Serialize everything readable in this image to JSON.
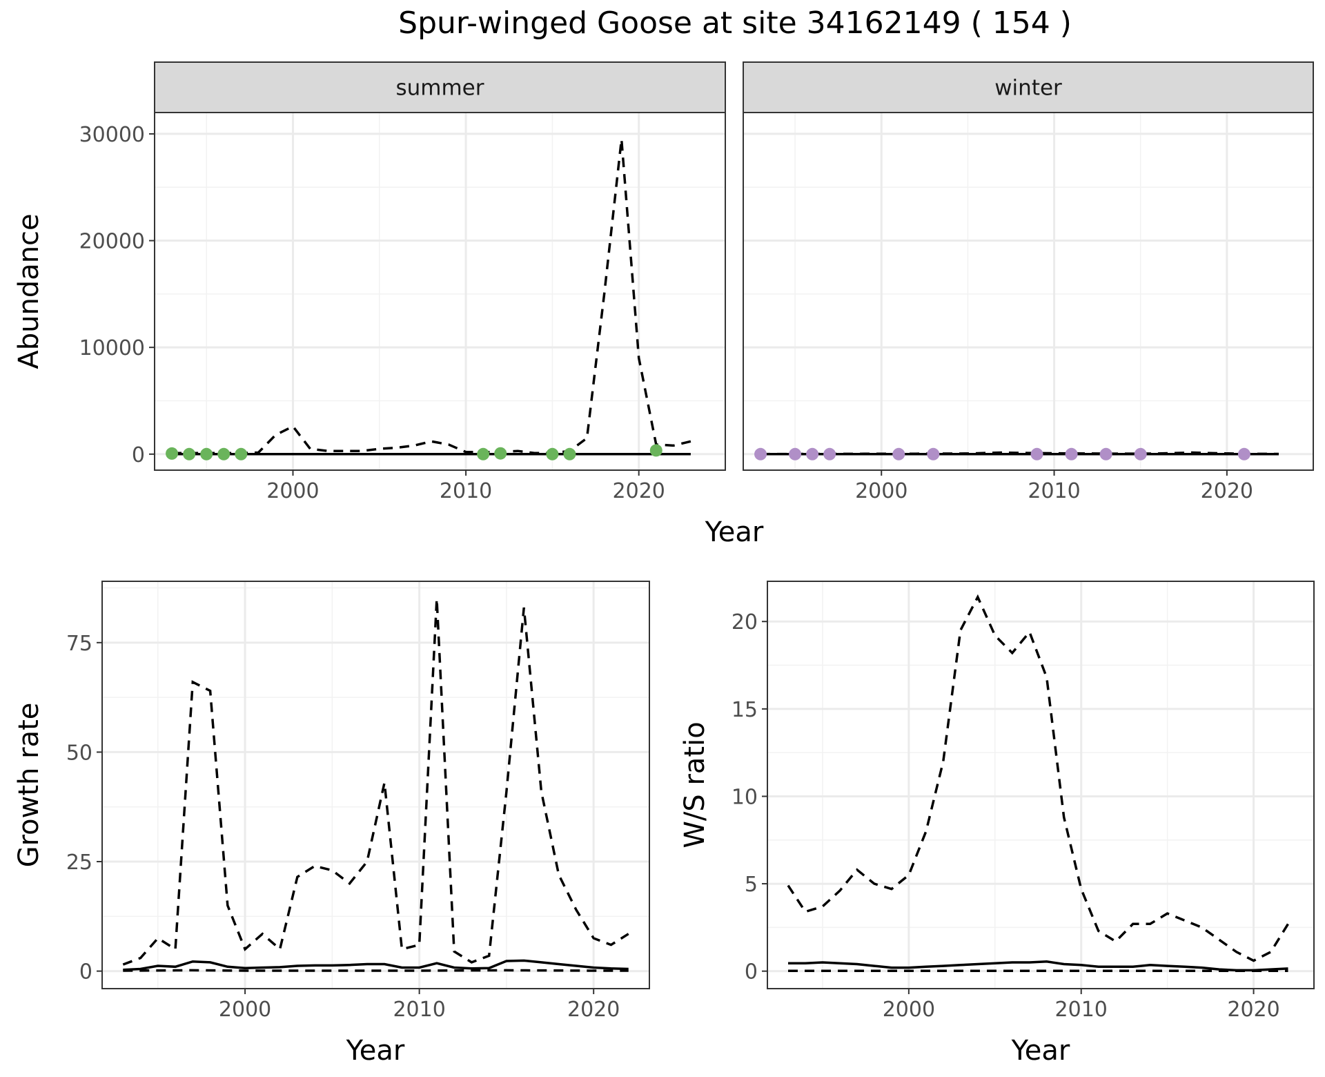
{
  "figure": {
    "title": "Spur-winged Goose at site 34162149 ( 154 )"
  },
  "chart_data": [
    {
      "id": "abundance",
      "type": "line",
      "ylabel": "Abundance",
      "xlabel": "Year",
      "xlim": [
        1992,
        2025
      ],
      "ylim": [
        -1500,
        32000
      ],
      "xticks": [
        2000,
        2010,
        2020
      ],
      "yticks": [
        0,
        10000,
        20000,
        30000
      ],
      "grid": true,
      "facets": [
        {
          "label": "summer",
          "point_color": "#6ab45b",
          "points": {
            "x": [
              1993,
              1994,
              1995,
              1996,
              1997,
              2011,
              2012,
              2015,
              2016,
              2021
            ],
            "y": [
              60,
              0,
              0,
              0,
              0,
              0,
              70,
              0,
              0,
              350
            ]
          },
          "series": [
            {
              "style": "solid",
              "x": [
                1993,
                1995,
                2000,
                2005,
                2010,
                2015,
                2019,
                2021,
                2023
              ],
              "y": [
                0,
                0,
                0,
                0,
                0,
                0,
                0,
                0,
                0
              ]
            },
            {
              "style": "dashed",
              "x": [
                1993,
                1995,
                1997,
                1998,
                1999,
                2000,
                2001,
                2002,
                2003,
                2004,
                2005,
                2006,
                2007,
                2008,
                2009,
                2010,
                2011,
                2012,
                2013,
                2014,
                2015,
                2016,
                2017,
                2018,
                2019,
                2020,
                2021,
                2022,
                2023
              ],
              "y": [
                100,
                100,
                100,
                150,
                1800,
                2600,
                500,
                300,
                300,
                300,
                500,
                600,
                800,
                1200,
                900,
                200,
                200,
                200,
                300,
                100,
                100,
                300,
                1500,
                15000,
                29500,
                9000,
                900,
                800,
                1200
              ]
            }
          ]
        },
        {
          "label": "winter",
          "point_color": "#b08fc7",
          "points": {
            "x": [
              1993,
              1995,
              1996,
              1997,
              2001,
              2003,
              2009,
              2011,
              2013,
              2015,
              2021
            ],
            "y": [
              0,
              0,
              0,
              0,
              0,
              0,
              0,
              0,
              0,
              0,
              0
            ]
          },
          "series": [
            {
              "style": "solid",
              "x": [
                1993,
                2000,
                2010,
                2020,
                2023
              ],
              "y": [
                0,
                0,
                0,
                0,
                0
              ]
            },
            {
              "style": "dashed",
              "x": [
                1993,
                1996,
                1999,
                2002,
                2005,
                2007,
                2008,
                2010,
                2012,
                2014,
                2016,
                2018,
                2019,
                2021,
                2023
              ],
              "y": [
                10,
                20,
                30,
                40,
                60,
                150,
                120,
                80,
                60,
                40,
                60,
                150,
                100,
                30,
                20
              ]
            }
          ]
        }
      ]
    },
    {
      "id": "growth",
      "type": "line",
      "ylabel": "Growth rate",
      "xlabel": "Year",
      "xlim": [
        1991.8,
        2023.2
      ],
      "ylim": [
        -4,
        89
      ],
      "xticks": [
        2000,
        2010,
        2020
      ],
      "yticks": [
        0,
        25,
        50,
        75
      ],
      "grid": true,
      "series": [
        {
          "style": "dashed",
          "x": [
            1993,
            1994,
            1995,
            1996,
            1997,
            1998,
            1999,
            2000,
            2001,
            2002,
            2003,
            2004,
            2005,
            2006,
            2007,
            2008,
            2009,
            2010,
            2011,
            2012,
            2013,
            2014,
            2015,
            2016,
            2017,
            2018,
            2019,
            2020,
            2021,
            2022
          ],
          "y": [
            1.5,
            3,
            7.5,
            5,
            66,
            64,
            15,
            5,
            8.5,
            5,
            21.5,
            24,
            23,
            20,
            25,
            43,
            5,
            6,
            85,
            4.5,
            2,
            3.5,
            41,
            83,
            41,
            22,
            14,
            7.5,
            6,
            8.5
          ]
        },
        {
          "style": "solid",
          "x": [
            1993,
            1994,
            1995,
            1996,
            1997,
            1998,
            1999,
            2000,
            2001,
            2002,
            2003,
            2004,
            2005,
            2006,
            2007,
            2008,
            2009,
            2010,
            2011,
            2012,
            2013,
            2014,
            2015,
            2016,
            2017,
            2018,
            2019,
            2020,
            2021,
            2022
          ],
          "y": [
            0.3,
            0.5,
            1.2,
            1,
            2.2,
            2,
            1,
            0.7,
            0.8,
            0.9,
            1.2,
            1.3,
            1.3,
            1.4,
            1.6,
            1.6,
            0.8,
            0.8,
            1.8,
            0.8,
            0.6,
            0.7,
            2.3,
            2.4,
            2,
            1.6,
            1.2,
            0.8,
            0.6,
            0.5
          ]
        },
        {
          "style": "dashed",
          "x": [
            1993,
            1997,
            2000,
            2005,
            2010,
            2015,
            2020,
            2022
          ],
          "y": [
            0.1,
            0.2,
            0.1,
            0.1,
            0.1,
            0.2,
            0.1,
            0.1
          ]
        }
      ]
    },
    {
      "id": "ws_ratio",
      "type": "line",
      "ylabel": "W/S ratio",
      "xlabel": "Year",
      "xlim": [
        1991.8,
        2023.5
      ],
      "ylim": [
        -1,
        22.3
      ],
      "xticks": [
        2000,
        2010,
        2020
      ],
      "yticks": [
        0,
        5,
        10,
        15,
        20
      ],
      "grid": true,
      "series": [
        {
          "style": "dashed",
          "x": [
            1993,
            1994,
            1995,
            1996,
            1997,
            1998,
            1999,
            2000,
            2001,
            2002,
            2003,
            2004,
            2005,
            2006,
            2007,
            2008,
            2009,
            2010,
            2011,
            2012,
            2013,
            2014,
            2015,
            2016,
            2017,
            2018,
            2019,
            2020,
            2021,
            2022
          ],
          "y": [
            4.9,
            3.4,
            3.7,
            4.6,
            5.8,
            5,
            4.7,
            5.5,
            8,
            12,
            19.5,
            21.4,
            19.2,
            18.2,
            19.4,
            16.8,
            8.8,
            4.7,
            2.3,
            1.7,
            2.7,
            2.7,
            3.3,
            2.9,
            2.5,
            1.8,
            1.1,
            0.6,
            1.1,
            2.7
          ]
        },
        {
          "style": "solid",
          "x": [
            1993,
            1994,
            1995,
            1996,
            1997,
            1998,
            1999,
            2000,
            2001,
            2002,
            2003,
            2004,
            2005,
            2006,
            2007,
            2008,
            2009,
            2010,
            2011,
            2012,
            2013,
            2014,
            2015,
            2016,
            2017,
            2018,
            2019,
            2020,
            2021,
            2022
          ],
          "y": [
            0.45,
            0.45,
            0.5,
            0.45,
            0.4,
            0.3,
            0.2,
            0.2,
            0.25,
            0.3,
            0.35,
            0.4,
            0.45,
            0.5,
            0.5,
            0.55,
            0.4,
            0.35,
            0.25,
            0.25,
            0.25,
            0.35,
            0.3,
            0.25,
            0.2,
            0.1,
            0.05,
            0.05,
            0.1,
            0.15
          ]
        },
        {
          "style": "dashed",
          "x": [
            1993,
            2000,
            2010,
            2020,
            2022
          ],
          "y": [
            0.02,
            0.02,
            0.02,
            0.02,
            0.02
          ]
        }
      ]
    }
  ]
}
